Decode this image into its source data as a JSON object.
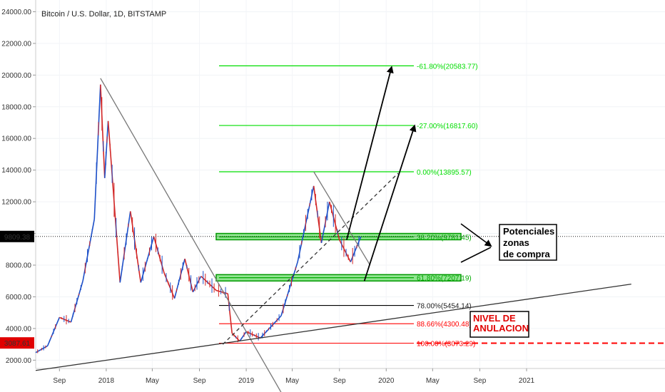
{
  "chart_data": {
    "type": "candlestick",
    "title": "Bitcoin / U.S. Dollar, 1D, BITSTAMP",
    "ylim": [
      800,
      24200
    ],
    "y_scale": "linear",
    "y_ticks": [
      "24000.00",
      "22000.00",
      "20000.00",
      "18000.00",
      "16000.00",
      "14000.00",
      "12000.00",
      "10000.00",
      "8000.00",
      "6000.00",
      "4000.00",
      "2000.00"
    ],
    "x_ticks": [
      "Sep",
      "2018",
      "May",
      "Sep",
      "2019",
      "May",
      "Sep",
      "2020",
      "May",
      "Sep",
      "2021"
    ],
    "current_price_label": "9809.38",
    "low_price_label": "3087.61",
    "price_path": [
      [
        "2017-07-01",
        2480
      ],
      [
        "2017-08-01",
        2900
      ],
      [
        "2017-09-01",
        4700
      ],
      [
        "2017-10-01",
        4400
      ],
      [
        "2017-11-01",
        7000
      ],
      [
        "2017-12-01",
        10900
      ],
      [
        "2017-12-17",
        19400
      ],
      [
        "2017-12-28",
        13500
      ],
      [
        "2018-01-06",
        17100
      ],
      [
        "2018-02-06",
        6900
      ],
      [
        "2018-03-05",
        11400
      ],
      [
        "2018-04-01",
        6900
      ],
      [
        "2018-05-05",
        9800
      ],
      [
        "2018-06-01",
        7500
      ],
      [
        "2018-06-28",
        5900
      ],
      [
        "2018-07-25",
        8400
      ],
      [
        "2018-08-15",
        6300
      ],
      [
        "2018-09-05",
        7300
      ],
      [
        "2018-10-15",
        6400
      ],
      [
        "2018-11-14",
        6200
      ],
      [
        "2018-11-25",
        3700
      ],
      [
        "2018-12-15",
        3200
      ],
      [
        "2019-01-01",
        3800
      ],
      [
        "2019-02-07",
        3400
      ],
      [
        "2019-04-02",
        4800
      ],
      [
        "2019-05-15",
        8200
      ],
      [
        "2019-06-26",
        13000
      ],
      [
        "2019-07-16",
        9400
      ],
      [
        "2019-08-06",
        12000
      ],
      [
        "2019-09-01",
        9600
      ],
      [
        "2019-09-30",
        8200
      ],
      [
        "2019-10-27",
        9800
      ]
    ],
    "series": [
      {
        "name": "",
        "values": [
          {
            "label": "-61.80%(20583.77)",
            "value": 20583.77,
            "color": "#00dd00"
          },
          {
            "label": "-27.00%(16817.60)",
            "value": 16817.6,
            "color": "#00dd00"
          },
          {
            "label": "0.00%(13895.57)",
            "value": 13895.57,
            "color": "#00dd00"
          },
          {
            "label": "38.20%(9781.45)",
            "value": 9781.45,
            "color": "#00aa00"
          },
          {
            "label": "61.80%(7207.19)",
            "value": 7207.19,
            "color": "#00aa00"
          },
          {
            "label": "78.00%(5454.14)",
            "value": 5454.14,
            "color": "#000000"
          },
          {
            "label": "88.66%(4300.48)",
            "value": 4300.48,
            "color": "#ff0000"
          },
          {
            "label": "100.00%(3073.29)",
            "value": 3073.29,
            "color": "#ff0000"
          }
        ]
      }
    ],
    "buy_zones": [
      {
        "top": 10000,
        "bottom": 9600
      },
      {
        "top": 7400,
        "bottom": 7000
      }
    ],
    "trendlines": [
      {
        "from": [
          "2017-12-17",
          19800
        ],
        "to": [
          "2019-04-25",
          -1000
        ],
        "color": "#777777"
      },
      {
        "from": [
          "2017-07-01",
          1350
        ],
        "to": [
          "2021-10-01",
          6800
        ],
        "color": "#333333"
      },
      {
        "from": [
          "2019-06-26",
          13900
        ],
        "to": [
          "2019-11-20",
          8000
        ],
        "color": "#777777"
      },
      {
        "from": [
          "2018-11-01",
          3000
        ],
        "to": [
          "2020-02-01",
          13800
        ],
        "color": "#333333",
        "dashed": true
      },
      {
        "from": [
          "2019-09-20",
          9600
        ],
        "to": [
          "2020-01-15",
          20500
        ],
        "color": "#000000",
        "arrow": true
      },
      {
        "from": [
          "2019-11-05",
          7000
        ],
        "to": [
          "2020-03-15",
          16800
        ],
        "color": "#000000",
        "arrow": true
      }
    ],
    "invalidation_level": 3073.29,
    "annotations": {
      "zones": [
        "Potenciales",
        "zonas",
        "de compra"
      ],
      "invalidation": [
        "NIVEL DE",
        "ANULACION"
      ]
    }
  }
}
